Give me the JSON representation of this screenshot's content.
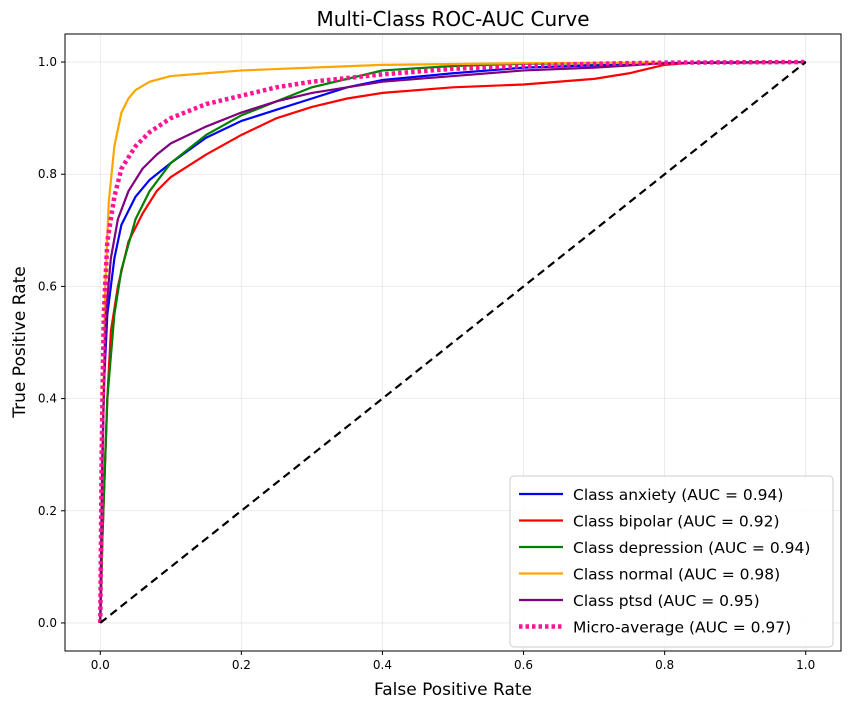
{
  "chart_data": {
    "type": "line",
    "title": "Multi-Class ROC-AUC Curve",
    "xlabel": "False Positive Rate",
    "ylabel": "True Positive Rate",
    "xlim": [
      -0.05,
      1.05
    ],
    "ylim": [
      -0.05,
      1.05
    ],
    "xticks": [
      "0.0",
      "0.2",
      "0.4",
      "0.6",
      "0.8",
      "1.0"
    ],
    "yticks": [
      "0.0",
      "0.2",
      "0.4",
      "0.6",
      "0.8",
      "1.0"
    ],
    "grid": true,
    "legend_position": "lower-right",
    "series": [
      {
        "name": "Class anxiety (AUC = 0.94)",
        "color": "#0000ff",
        "style": "solid",
        "points": [
          [
            0,
            0
          ],
          [
            0.002,
            0.2
          ],
          [
            0.005,
            0.42
          ],
          [
            0.01,
            0.55
          ],
          [
            0.02,
            0.65
          ],
          [
            0.03,
            0.71
          ],
          [
            0.05,
            0.76
          ],
          [
            0.07,
            0.79
          ],
          [
            0.1,
            0.82
          ],
          [
            0.15,
            0.865
          ],
          [
            0.2,
            0.895
          ],
          [
            0.25,
            0.915
          ],
          [
            0.3,
            0.935
          ],
          [
            0.35,
            0.955
          ],
          [
            0.4,
            0.968
          ],
          [
            0.5,
            0.98
          ],
          [
            0.6,
            0.99
          ],
          [
            0.8,
            0.998
          ],
          [
            1,
            1
          ]
        ]
      },
      {
        "name": "Class bipolar (AUC = 0.92)",
        "color": "#ff0000",
        "style": "solid",
        "points": [
          [
            0,
            0
          ],
          [
            0.003,
            0.15
          ],
          [
            0.01,
            0.4
          ],
          [
            0.015,
            0.52
          ],
          [
            0.025,
            0.6
          ],
          [
            0.04,
            0.68
          ],
          [
            0.06,
            0.73
          ],
          [
            0.08,
            0.77
          ],
          [
            0.1,
            0.795
          ],
          [
            0.15,
            0.835
          ],
          [
            0.2,
            0.87
          ],
          [
            0.25,
            0.9
          ],
          [
            0.3,
            0.92
          ],
          [
            0.35,
            0.935
          ],
          [
            0.4,
            0.945
          ],
          [
            0.5,
            0.955
          ],
          [
            0.6,
            0.96
          ],
          [
            0.7,
            0.97
          ],
          [
            0.75,
            0.98
          ],
          [
            0.8,
            0.995
          ],
          [
            0.85,
            1
          ],
          [
            1,
            1
          ]
        ]
      },
      {
        "name": "Class depression (AUC = 0.94)",
        "color": "#008000",
        "style": "solid",
        "points": [
          [
            0,
            0
          ],
          [
            0.003,
            0.15
          ],
          [
            0.01,
            0.4
          ],
          [
            0.02,
            0.55
          ],
          [
            0.03,
            0.63
          ],
          [
            0.05,
            0.72
          ],
          [
            0.07,
            0.77
          ],
          [
            0.1,
            0.82
          ],
          [
            0.15,
            0.87
          ],
          [
            0.2,
            0.905
          ],
          [
            0.25,
            0.93
          ],
          [
            0.3,
            0.955
          ],
          [
            0.35,
            0.97
          ],
          [
            0.4,
            0.985
          ],
          [
            0.5,
            0.993
          ],
          [
            0.6,
            0.997
          ],
          [
            1,
            1
          ]
        ]
      },
      {
        "name": "Class normal (AUC = 0.98)",
        "color": "#ffa500",
        "style": "solid",
        "points": [
          [
            0,
            0
          ],
          [
            0.003,
            0.3
          ],
          [
            0.007,
            0.6
          ],
          [
            0.012,
            0.75
          ],
          [
            0.02,
            0.85
          ],
          [
            0.03,
            0.91
          ],
          [
            0.04,
            0.935
          ],
          [
            0.05,
            0.95
          ],
          [
            0.07,
            0.965
          ],
          [
            0.1,
            0.975
          ],
          [
            0.15,
            0.98
          ],
          [
            0.2,
            0.985
          ],
          [
            0.3,
            0.99
          ],
          [
            0.4,
            0.995
          ],
          [
            0.6,
            0.998
          ],
          [
            1,
            1
          ]
        ]
      },
      {
        "name": "Class ptsd (AUC = 0.95)",
        "color": "#800080",
        "style": "solid",
        "points": [
          [
            0,
            0
          ],
          [
            0.003,
            0.3
          ],
          [
            0.008,
            0.55
          ],
          [
            0.015,
            0.65
          ],
          [
            0.025,
            0.72
          ],
          [
            0.04,
            0.77
          ],
          [
            0.06,
            0.81
          ],
          [
            0.08,
            0.835
          ],
          [
            0.1,
            0.855
          ],
          [
            0.15,
            0.885
          ],
          [
            0.2,
            0.91
          ],
          [
            0.25,
            0.93
          ],
          [
            0.3,
            0.945
          ],
          [
            0.35,
            0.955
          ],
          [
            0.4,
            0.965
          ],
          [
            0.5,
            0.975
          ],
          [
            0.6,
            0.985
          ],
          [
            0.7,
            0.99
          ],
          [
            0.8,
            0.998
          ],
          [
            1,
            1
          ]
        ]
      },
      {
        "name": "Micro-average (AUC = 0.97)",
        "color": "#ff1493",
        "style": "dotted",
        "points": [
          [
            0,
            0
          ],
          [
            0.002,
            0.3
          ],
          [
            0.005,
            0.55
          ],
          [
            0.01,
            0.68
          ],
          [
            0.02,
            0.76
          ],
          [
            0.03,
            0.81
          ],
          [
            0.05,
            0.85
          ],
          [
            0.07,
            0.875
          ],
          [
            0.1,
            0.9
          ],
          [
            0.15,
            0.925
          ],
          [
            0.2,
            0.94
          ],
          [
            0.25,
            0.955
          ],
          [
            0.3,
            0.965
          ],
          [
            0.4,
            0.978
          ],
          [
            0.5,
            0.988
          ],
          [
            0.6,
            0.993
          ],
          [
            0.7,
            0.997
          ],
          [
            0.8,
            0.999
          ],
          [
            1,
            1
          ]
        ]
      }
    ],
    "diagonal": {
      "color": "#000000",
      "style": "dashed",
      "points": [
        [
          0,
          0
        ],
        [
          1,
          1
        ]
      ]
    }
  }
}
